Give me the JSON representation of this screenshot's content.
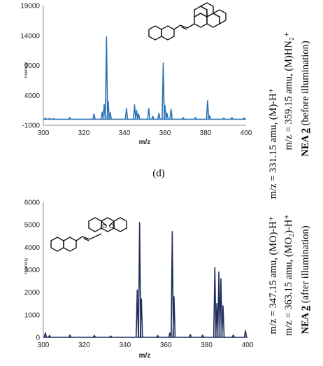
{
  "panel_label": "(d)",
  "chart_data": [
    {
      "type": "line",
      "xlabel": "m/z",
      "ylabel": "Intensity",
      "xlim": [
        300,
        400
      ],
      "ylim": [
        -1000,
        19000
      ],
      "xticks": [
        "300",
        "320",
        "340",
        "360",
        "380",
        "400"
      ],
      "yticks": [
        "19000",
        "14000",
        "9000",
        "4000",
        "-1000"
      ],
      "color": "#2e75b6",
      "peaks": [
        {
          "x": 301,
          "y": 200
        },
        {
          "x": 303,
          "y": 150
        },
        {
          "x": 305,
          "y": 120
        },
        {
          "x": 313,
          "y": 300
        },
        {
          "x": 325,
          "y": 900
        },
        {
          "x": 329,
          "y": 1200
        },
        {
          "x": 330,
          "y": 2500
        },
        {
          "x": 331.15,
          "y": 13800
        },
        {
          "x": 332,
          "y": 3000
        },
        {
          "x": 333,
          "y": 1100
        },
        {
          "x": 341,
          "y": 1800
        },
        {
          "x": 345,
          "y": 2400
        },
        {
          "x": 346,
          "y": 1500
        },
        {
          "x": 347,
          "y": 900
        },
        {
          "x": 352,
          "y": 1800
        },
        {
          "x": 354,
          "y": 500
        },
        {
          "x": 357,
          "y": 1000
        },
        {
          "x": 359.15,
          "y": 9400
        },
        {
          "x": 360,
          "y": 2300
        },
        {
          "x": 361,
          "y": 1000
        },
        {
          "x": 363,
          "y": 1700
        },
        {
          "x": 369,
          "y": 300
        },
        {
          "x": 375,
          "y": 300
        },
        {
          "x": 381,
          "y": 3100
        },
        {
          "x": 382,
          "y": 600
        },
        {
          "x": 389,
          "y": 200
        },
        {
          "x": 393,
          "y": 300
        },
        {
          "x": 399,
          "y": 200
        }
      ],
      "annotations": [
        "m/z = 331.15 amu, (M)-H⁺",
        "m/z = 359.15 amu, (M)HN₂⁺"
      ],
      "label_prefix": "NEA ",
      "label_num": "2",
      "label_suffix": " (before illumination)"
    },
    {
      "type": "line",
      "xlabel": "m/z",
      "ylabel": "Intensity",
      "xlim": [
        300,
        400
      ],
      "ylim": [
        0,
        6000
      ],
      "xticks": [
        "300",
        "320",
        "340",
        "360",
        "380",
        "400"
      ],
      "yticks": [
        "6000",
        "5000",
        "4000",
        "3000",
        "2000",
        "1000",
        "0"
      ],
      "color": "#1f2d5c",
      "peaks": [
        {
          "x": 301,
          "y": 200
        },
        {
          "x": 303,
          "y": 80
        },
        {
          "x": 313,
          "y": 100
        },
        {
          "x": 325,
          "y": 80
        },
        {
          "x": 333,
          "y": 60
        },
        {
          "x": 346,
          "y": 2100
        },
        {
          "x": 347.15,
          "y": 5100
        },
        {
          "x": 348,
          "y": 1700
        },
        {
          "x": 356,
          "y": 80
        },
        {
          "x": 362,
          "y": 200
        },
        {
          "x": 363.15,
          "y": 4700
        },
        {
          "x": 364,
          "y": 1800
        },
        {
          "x": 372,
          "y": 120
        },
        {
          "x": 378,
          "y": 100
        },
        {
          "x": 384,
          "y": 3100
        },
        {
          "x": 385,
          "y": 1500
        },
        {
          "x": 386,
          "y": 2900
        },
        {
          "x": 387,
          "y": 2600
        },
        {
          "x": 388,
          "y": 1400
        },
        {
          "x": 393,
          "y": 100
        },
        {
          "x": 399,
          "y": 300
        }
      ],
      "annotations": [
        "m/z = 347.15 amu, (MO)-H⁺",
        "m/z = 363.15 amu, (MO₂)-H⁺"
      ],
      "label_prefix": "NEA ",
      "label_num": "2",
      "label_suffix": " (after illumination)"
    }
  ]
}
